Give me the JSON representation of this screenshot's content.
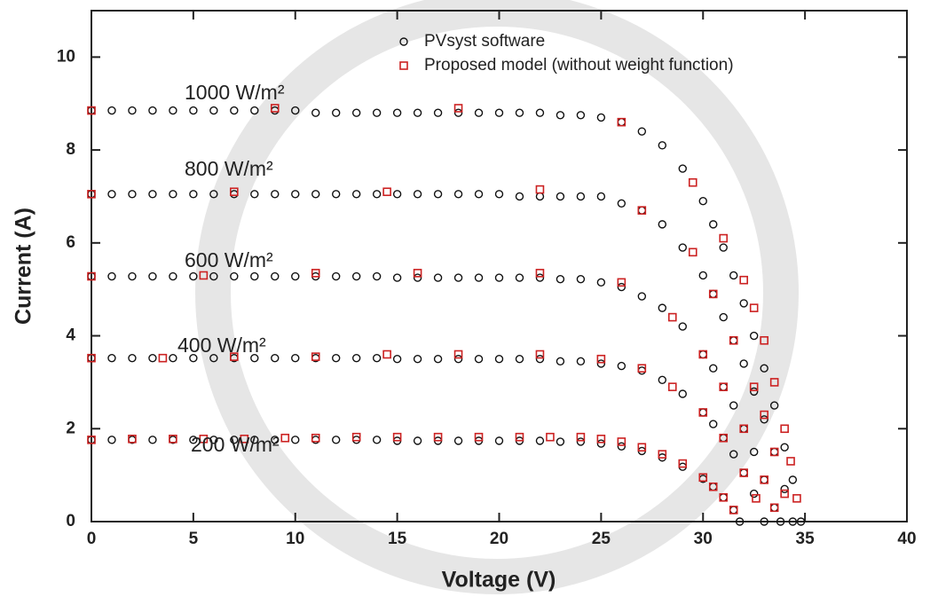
{
  "chart_data": {
    "type": "scatter",
    "x_label": "Voltage (V)",
    "y_label": "Current (A)",
    "xlim": [
      0,
      40
    ],
    "ylim": [
      0,
      11
    ],
    "xticks": [
      0,
      5,
      10,
      15,
      20,
      25,
      30,
      35,
      40
    ],
    "yticks": [
      0,
      2,
      4,
      6,
      8,
      10
    ],
    "legend": "top-right",
    "annotations": [
      "1000 W/m²",
      "800 W/m²",
      "600 W/m²",
      "400 W/m²",
      "200 W/m²"
    ],
    "series": [
      {
        "name": "PVsyst software",
        "marker": "circle",
        "color": "#111111",
        "x": [
          0,
          1,
          2,
          3,
          4,
          5,
          6,
          7,
          8,
          9,
          10,
          11,
          12,
          13,
          14,
          15,
          16,
          17,
          18,
          19,
          20,
          21,
          22,
          23,
          24,
          25,
          26,
          27,
          28,
          29,
          30,
          30.5,
          31,
          31.5,
          32,
          32.5,
          33,
          33.5,
          34,
          34.4,
          34.8,
          0,
          1,
          2,
          3,
          4,
          5,
          6,
          7,
          8,
          9,
          10,
          11,
          12,
          13,
          14,
          15,
          16,
          17,
          18,
          19,
          20,
          21,
          22,
          23,
          24,
          25,
          26,
          27,
          28,
          29,
          30,
          30.5,
          31,
          31.5,
          32,
          32.5,
          33,
          33.5,
          34,
          34.4,
          0,
          1,
          2,
          3,
          4,
          5,
          6,
          7,
          8,
          9,
          10,
          11,
          12,
          13,
          14,
          15,
          16,
          17,
          18,
          19,
          20,
          21,
          22,
          23,
          24,
          25,
          26,
          27,
          28,
          29,
          30,
          30.5,
          31,
          31.5,
          32,
          32.5,
          33,
          33.5,
          33.8,
          0,
          1,
          2,
          3,
          4,
          5,
          6,
          7,
          8,
          9,
          10,
          11,
          12,
          13,
          14,
          15,
          16,
          17,
          18,
          19,
          20,
          21,
          22,
          23,
          24,
          25,
          26,
          27,
          28,
          29,
          30,
          30.5,
          31,
          31.5,
          32,
          32.5,
          33,
          0,
          1,
          2,
          3,
          4,
          5,
          6,
          7,
          8,
          9,
          10,
          11,
          12,
          13,
          14,
          15,
          16,
          17,
          18,
          19,
          20,
          21,
          22,
          23,
          24,
          25,
          26,
          27,
          28,
          29,
          30,
          30.5,
          31,
          31.5,
          31.8
        ],
        "values": [
          8.85,
          8.85,
          8.85,
          8.85,
          8.85,
          8.85,
          8.85,
          8.85,
          8.85,
          8.85,
          8.85,
          8.8,
          8.8,
          8.8,
          8.8,
          8.8,
          8.8,
          8.8,
          8.8,
          8.8,
          8.8,
          8.8,
          8.8,
          8.75,
          8.75,
          8.7,
          8.6,
          8.4,
          8.1,
          7.6,
          6.9,
          6.4,
          5.9,
          5.3,
          4.7,
          4.0,
          3.3,
          2.5,
          1.6,
          0.9,
          0,
          7.05,
          7.05,
          7.05,
          7.05,
          7.05,
          7.05,
          7.05,
          7.05,
          7.05,
          7.05,
          7.05,
          7.05,
          7.05,
          7.05,
          7.05,
          7.05,
          7.05,
          7.05,
          7.05,
          7.05,
          7.05,
          7.0,
          7.0,
          7.0,
          7.0,
          7.0,
          6.85,
          6.7,
          6.4,
          5.9,
          5.3,
          4.9,
          4.4,
          3.9,
          3.4,
          2.8,
          2.2,
          1.5,
          0.7,
          0,
          5.28,
          5.28,
          5.28,
          5.28,
          5.28,
          5.28,
          5.28,
          5.28,
          5.28,
          5.28,
          5.28,
          5.28,
          5.28,
          5.28,
          5.28,
          5.25,
          5.25,
          5.25,
          5.25,
          5.25,
          5.25,
          5.25,
          5.25,
          5.22,
          5.22,
          5.15,
          5.05,
          4.85,
          4.6,
          4.2,
          3.6,
          3.3,
          2.9,
          2.5,
          2.0,
          1.5,
          0.9,
          0.3,
          0,
          3.52,
          3.52,
          3.52,
          3.52,
          3.52,
          3.52,
          3.52,
          3.52,
          3.52,
          3.52,
          3.52,
          3.52,
          3.52,
          3.52,
          3.52,
          3.5,
          3.5,
          3.5,
          3.5,
          3.5,
          3.5,
          3.5,
          3.5,
          3.45,
          3.45,
          3.4,
          3.35,
          3.25,
          3.05,
          2.75,
          2.35,
          2.1,
          1.8,
          1.45,
          1.05,
          0.6,
          0,
          1.76,
          1.76,
          1.76,
          1.76,
          1.76,
          1.76,
          1.76,
          1.76,
          1.76,
          1.76,
          1.76,
          1.76,
          1.76,
          1.76,
          1.76,
          1.74,
          1.74,
          1.74,
          1.74,
          1.74,
          1.74,
          1.74,
          1.74,
          1.72,
          1.72,
          1.68,
          1.62,
          1.52,
          1.38,
          1.18,
          0.92,
          0.75,
          0.52,
          0.25,
          0
        ]
      },
      {
        "name": "Proposed model (without weight function)",
        "marker": "square",
        "color": "#cc2222",
        "x": [
          0,
          9,
          18,
          26,
          29.5,
          31,
          32,
          32.5,
          33,
          33.5,
          34,
          34.3,
          34.6,
          0,
          7,
          14.5,
          22,
          27,
          29.5,
          30.5,
          31.5,
          32.5,
          33,
          33.5,
          34,
          0,
          5.5,
          11,
          16,
          22,
          26,
          28.5,
          30,
          31,
          32,
          33,
          33.5,
          0,
          3.5,
          7,
          11,
          14.5,
          18,
          22,
          25,
          27,
          28.5,
          30,
          31,
          32,
          32.6,
          0,
          2,
          4,
          5.5,
          7.5,
          9.5,
          11,
          13,
          15,
          17,
          19,
          21,
          22.5,
          24,
          25,
          26,
          27,
          28,
          29,
          30,
          30.5,
          31,
          31.5
        ],
        "values": [
          8.85,
          8.9,
          8.9,
          8.6,
          7.3,
          6.1,
          5.2,
          4.6,
          3.9,
          3.0,
          2.0,
          1.3,
          0.5,
          7.05,
          7.1,
          7.1,
          7.15,
          6.7,
          5.8,
          4.9,
          3.9,
          2.9,
          2.3,
          1.5,
          0.6,
          5.28,
          5.3,
          5.35,
          5.35,
          5.35,
          5.15,
          4.4,
          3.6,
          2.9,
          2.0,
          0.9,
          0.3,
          3.52,
          3.52,
          3.55,
          3.55,
          3.6,
          3.6,
          3.6,
          3.5,
          3.3,
          2.9,
          2.35,
          1.8,
          1.05,
          0.5,
          1.76,
          1.78,
          1.78,
          1.78,
          1.78,
          1.8,
          1.8,
          1.82,
          1.82,
          1.82,
          1.82,
          1.82,
          1.82,
          1.82,
          1.78,
          1.72,
          1.6,
          1.45,
          1.25,
          0.95,
          0.75,
          0.52,
          0.25
        ]
      }
    ]
  }
}
